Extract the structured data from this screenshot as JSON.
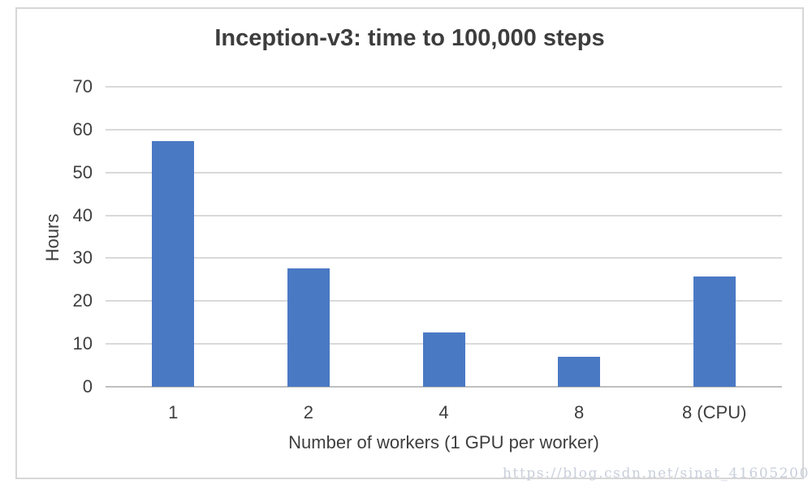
{
  "chart_data": {
    "type": "bar",
    "title": "Inception-v3: time to 100,000 steps",
    "categories": [
      "1",
      "2",
      "4",
      "8",
      "8 (CPU)"
    ],
    "values": [
      57.4,
      27.6,
      12.7,
      7.0,
      25.7
    ],
    "xlabel": "Number of workers (1 GPU per worker)",
    "ylabel": "Hours",
    "ylim": [
      0,
      70
    ],
    "yticks": [
      0,
      10,
      20,
      30,
      40,
      50,
      60,
      70
    ],
    "grid": true,
    "legend": "none",
    "bar_color": "#4a79c4",
    "gridline_color": "#d9d9d9",
    "axis_line_color": "#bfbfbf",
    "text_color": "#3e3e3e"
  },
  "watermark": {
    "text": "https://blog.csdn.net/sinat_41605200",
    "color": "#c9cfda"
  }
}
